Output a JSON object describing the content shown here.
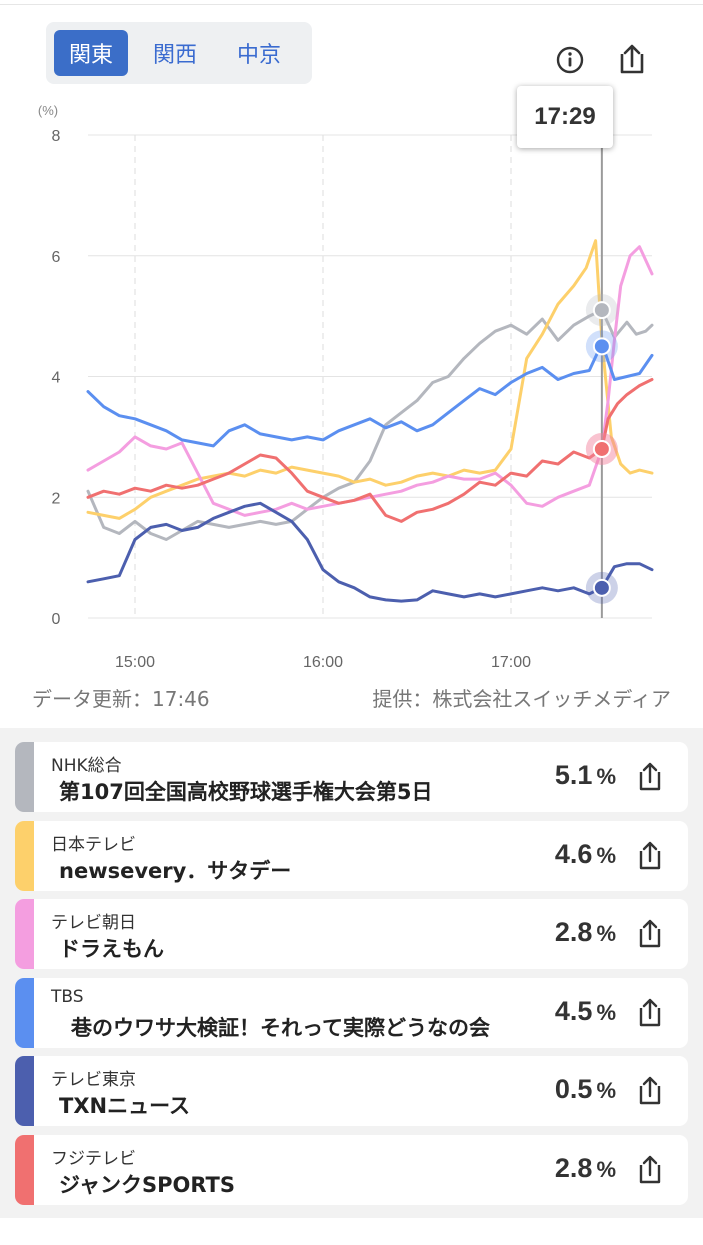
{
  "regions": [
    {
      "label": "関東",
      "active": true
    },
    {
      "label": "関西",
      "active": false
    },
    {
      "label": "中京",
      "active": false
    }
  ],
  "header_icons": {
    "info": "info-icon",
    "share": "share-icon"
  },
  "tooltip_time": "17:29",
  "footer": {
    "updated": "データ更新：17:46",
    "provider": "提供：株式会社スイッチメディア"
  },
  "chart_data": {
    "type": "line",
    "y_unit": "(%)",
    "ylim": [
      0,
      8
    ],
    "y_ticks": [
      "0",
      "2",
      "4",
      "6",
      "8"
    ],
    "x_tick_labels": [
      "15:00",
      "16:00",
      "17:00"
    ],
    "x_tick_minutes": [
      900,
      960,
      1020
    ],
    "xlim_minutes": [
      885,
      1065
    ],
    "cursor_minute": 1049,
    "grid": true,
    "series": [
      {
        "name": "NHK総合",
        "color": "#b4b7be",
        "x": [
          885,
          890,
          895,
          900,
          905,
          910,
          915,
          920,
          925,
          930,
          935,
          940,
          945,
          950,
          955,
          960,
          965,
          970,
          975,
          980,
          985,
          990,
          995,
          1000,
          1005,
          1010,
          1015,
          1020,
          1025,
          1030,
          1035,
          1040,
          1045,
          1049,
          1053,
          1057,
          1060,
          1063,
          1065
        ],
        "y": [
          2.1,
          1.5,
          1.4,
          1.6,
          1.4,
          1.3,
          1.45,
          1.6,
          1.55,
          1.5,
          1.55,
          1.6,
          1.55,
          1.6,
          1.8,
          2.0,
          2.15,
          2.25,
          2.6,
          3.2,
          3.4,
          3.6,
          3.9,
          4.0,
          4.3,
          4.55,
          4.75,
          4.85,
          4.7,
          4.95,
          4.6,
          4.85,
          5.0,
          5.1,
          4.65,
          4.9,
          4.7,
          4.75,
          4.85
        ]
      },
      {
        "name": "日本テレビ",
        "color": "#fdd06b",
        "x": [
          885,
          890,
          895,
          900,
          905,
          910,
          915,
          920,
          925,
          930,
          935,
          940,
          945,
          950,
          955,
          960,
          965,
          970,
          975,
          980,
          985,
          990,
          995,
          1000,
          1005,
          1010,
          1015,
          1020,
          1025,
          1030,
          1035,
          1040,
          1044,
          1047,
          1049,
          1052,
          1055,
          1058,
          1061,
          1065
        ],
        "y": [
          1.75,
          1.7,
          1.65,
          1.8,
          2.0,
          2.1,
          2.2,
          2.3,
          2.35,
          2.4,
          2.35,
          2.45,
          2.4,
          2.5,
          2.45,
          2.4,
          2.35,
          2.25,
          2.3,
          2.2,
          2.25,
          2.35,
          2.4,
          2.35,
          2.45,
          2.4,
          2.45,
          2.8,
          4.3,
          4.7,
          5.2,
          5.5,
          5.8,
          6.25,
          4.6,
          3.0,
          2.55,
          2.4,
          2.45,
          2.4
        ]
      },
      {
        "name": "テレビ朝日",
        "color": "#f49ee0",
        "x": [
          885,
          890,
          895,
          900,
          905,
          910,
          915,
          920,
          925,
          930,
          935,
          940,
          945,
          950,
          955,
          960,
          965,
          970,
          975,
          980,
          985,
          990,
          995,
          1000,
          1005,
          1010,
          1015,
          1020,
          1025,
          1030,
          1035,
          1040,
          1045,
          1049,
          1051,
          1053,
          1055,
          1058,
          1061,
          1065
        ],
        "y": [
          2.45,
          2.6,
          2.75,
          3.0,
          2.85,
          2.8,
          2.9,
          2.4,
          1.9,
          1.8,
          1.7,
          1.75,
          1.8,
          1.9,
          1.8,
          1.85,
          1.9,
          1.95,
          2.0,
          2.05,
          2.1,
          2.2,
          2.25,
          2.35,
          2.3,
          2.3,
          2.4,
          2.2,
          1.9,
          1.85,
          2.0,
          2.1,
          2.2,
          2.8,
          3.6,
          4.6,
          5.5,
          6.0,
          6.15,
          5.7
        ]
      },
      {
        "name": "TBS",
        "color": "#5b8ff0",
        "x": [
          885,
          890,
          895,
          900,
          905,
          910,
          915,
          920,
          925,
          930,
          935,
          940,
          945,
          950,
          955,
          960,
          965,
          970,
          975,
          980,
          985,
          990,
          995,
          1000,
          1005,
          1010,
          1015,
          1020,
          1025,
          1030,
          1035,
          1040,
          1045,
          1049,
          1053,
          1057,
          1061,
          1065
        ],
        "y": [
          3.75,
          3.5,
          3.35,
          3.3,
          3.2,
          3.1,
          2.95,
          2.9,
          2.85,
          3.1,
          3.2,
          3.05,
          3.0,
          2.95,
          3.0,
          2.95,
          3.1,
          3.2,
          3.3,
          3.15,
          3.25,
          3.1,
          3.2,
          3.4,
          3.6,
          3.8,
          3.7,
          3.9,
          4.05,
          4.15,
          3.95,
          4.05,
          4.1,
          4.55,
          3.95,
          4.0,
          4.05,
          4.35
        ]
      },
      {
        "name": "テレビ東京",
        "color": "#4c5fae",
        "x": [
          885,
          890,
          895,
          900,
          905,
          910,
          915,
          920,
          925,
          930,
          935,
          940,
          945,
          950,
          955,
          960,
          965,
          970,
          975,
          980,
          985,
          990,
          995,
          1000,
          1005,
          1010,
          1015,
          1020,
          1025,
          1030,
          1035,
          1040,
          1045,
          1049,
          1053,
          1057,
          1061,
          1065
        ],
        "y": [
          0.6,
          0.65,
          0.7,
          1.3,
          1.5,
          1.55,
          1.45,
          1.5,
          1.65,
          1.75,
          1.85,
          1.9,
          1.75,
          1.6,
          1.3,
          0.8,
          0.6,
          0.5,
          0.35,
          0.3,
          0.28,
          0.3,
          0.45,
          0.4,
          0.35,
          0.4,
          0.35,
          0.4,
          0.45,
          0.5,
          0.45,
          0.5,
          0.4,
          0.5,
          0.85,
          0.9,
          0.9,
          0.8
        ]
      },
      {
        "name": "フジテレビ",
        "color": "#f07070",
        "x": [
          885,
          890,
          895,
          900,
          905,
          910,
          915,
          920,
          925,
          930,
          935,
          940,
          945,
          950,
          955,
          960,
          965,
          970,
          975,
          980,
          985,
          990,
          995,
          1000,
          1005,
          1010,
          1015,
          1020,
          1025,
          1030,
          1035,
          1040,
          1045,
          1049,
          1051,
          1054,
          1057,
          1061,
          1065
        ],
        "y": [
          2.0,
          2.1,
          2.05,
          2.15,
          2.1,
          2.2,
          2.15,
          2.2,
          2.3,
          2.4,
          2.55,
          2.7,
          2.65,
          2.4,
          2.1,
          2.0,
          1.9,
          1.95,
          2.05,
          1.7,
          1.6,
          1.75,
          1.8,
          1.9,
          2.05,
          2.25,
          2.2,
          2.4,
          2.35,
          2.6,
          2.55,
          2.75,
          2.65,
          2.8,
          3.3,
          3.55,
          3.7,
          3.85,
          3.95
        ]
      }
    ],
    "cursor_values": [
      5.1,
      4.6,
      2.8,
      4.5,
      0.5,
      2.8
    ]
  },
  "channels": [
    {
      "name": "NHK総合",
      "program": "第107回全国高校野球選手権大会第5日",
      "rating": "5.1",
      "unit": "%",
      "color": "#b4b7be"
    },
    {
      "name": "日本テレビ",
      "program": "newsevery．サタデー",
      "rating": "4.6",
      "unit": "%",
      "color": "#fdd06b"
    },
    {
      "name": "テレビ朝日",
      "program": "ドラえもん",
      "rating": "2.8",
      "unit": "%",
      "color": "#f49ee0"
    },
    {
      "name": "TBS",
      "program": "巷のウワサ大検証！それって実際どうなの会",
      "rating": "4.5",
      "unit": "%",
      "color": "#5b8ff0"
    },
    {
      "name": "テレビ東京",
      "program": "TXNニュース",
      "rating": "0.5",
      "unit": "%",
      "color": "#4c5fae"
    },
    {
      "name": "フジテレビ",
      "program": "ジャンクSPORTS",
      "rating": "2.8",
      "unit": "%",
      "color": "#f07070"
    }
  ]
}
